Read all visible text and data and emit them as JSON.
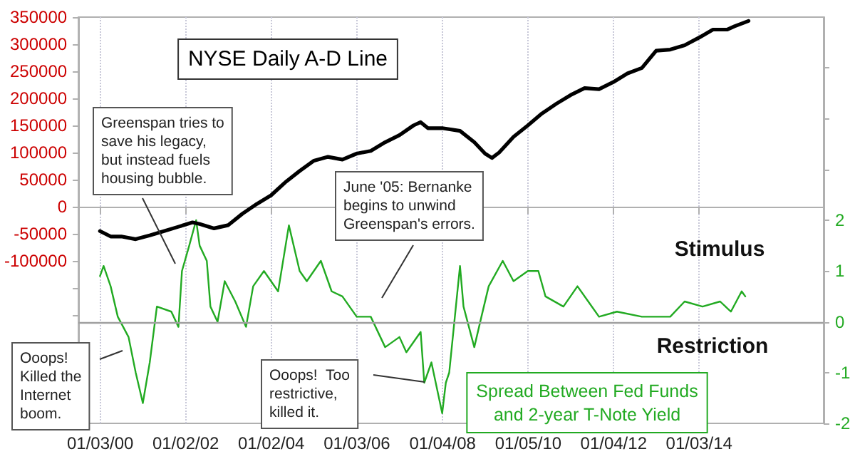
{
  "chart_data": {
    "type": "line",
    "xlim": [
      "1999-07-01",
      "2016-12-01"
    ],
    "xticks": [
      {
        "value": "2000-01-03",
        "label": "01/03/00"
      },
      {
        "value": "2002-01-02",
        "label": "01/02/02"
      },
      {
        "value": "2004-01-02",
        "label": "01/02/04"
      },
      {
        "value": "2006-01-03",
        "label": "01/03/06"
      },
      {
        "value": "2008-01-04",
        "label": "01/04/08"
      },
      {
        "value": "2010-01-05",
        "label": "01/05/10"
      },
      {
        "value": "2012-01-04",
        "label": "01/04/12"
      },
      {
        "value": "2014-01-03",
        "label": "01/03/14"
      }
    ],
    "ylim": [
      -400000,
      350000
    ],
    "yticks": [
      {
        "value": -350000,
        "label": null
      },
      {
        "value": -300000,
        "label": null
      },
      {
        "value": -250000,
        "label": null
      },
      {
        "value": -200000,
        "label": null
      },
      {
        "value": -150000,
        "label": null
      },
      -100000,
      -50000,
      0,
      50000,
      100000,
      150000,
      200000,
      250000,
      300000,
      350000
    ],
    "y2lim": [
      -2,
      6
    ],
    "y2ticks": [
      -2,
      -1,
      0,
      1,
      2,
      {
        "value": 3,
        "label": null
      },
      {
        "value": 4,
        "label": null
      },
      {
        "value": 5,
        "label": null
      }
    ],
    "grid": "x",
    "marker": "none",
    "line_style": "solid",
    "ref_lines": [
      {
        "axis": "y2",
        "value": 0,
        "color": "#a0a0a0"
      }
    ],
    "series": [
      {
        "name": "NYSE Daily A-D Line",
        "color": "#000000",
        "x": [
          "2000-01",
          "2000-04",
          "2000-07",
          "2000-11",
          "2001-03",
          "2001-07",
          "2001-11",
          "2002-03",
          "2002-05",
          "2002-09",
          "2003-01",
          "2003-05",
          "2003-09",
          "2004-01",
          "2004-05",
          "2004-09",
          "2005-01",
          "2005-05",
          "2005-09",
          "2006-01",
          "2006-05",
          "2006-09",
          "2007-01",
          "2007-05",
          "2007-07",
          "2007-09",
          "2008-01",
          "2008-06",
          "2008-10",
          "2009-01",
          "2009-03",
          "2009-05",
          "2009-09",
          "2010-01",
          "2010-05",
          "2010-09",
          "2011-01",
          "2011-05",
          "2011-09",
          "2012-01",
          "2012-05",
          "2012-09",
          "2013-01",
          "2013-05",
          "2013-09",
          "2014-01",
          "2014-05",
          "2014-09",
          "2014-11",
          "2015-03"
        ],
        "values": [
          -45000,
          -55000,
          -55000,
          -60000,
          -53000,
          -45000,
          -37000,
          -29000,
          -32000,
          -40000,
          -34000,
          -13000,
          5000,
          21000,
          45000,
          66000,
          85000,
          92000,
          87000,
          98000,
          103000,
          119000,
          132000,
          150000,
          156000,
          145000,
          145000,
          140000,
          119000,
          98000,
          90000,
          100000,
          129000,
          150000,
          172000,
          190000,
          206000,
          219000,
          217000,
          230000,
          246000,
          256000,
          288000,
          290000,
          298000,
          312000,
          327000,
          327000,
          333000,
          343000
        ]
      },
      {
        "name": "Spread Between Fed Funds and 2-year T-Note Yield",
        "color": "#22aa22",
        "axis": "y2",
        "x": [
          "2000-01",
          "2000-02",
          "2000-04",
          "2000-06",
          "2000-09",
          "2000-11",
          "2001-01",
          "2001-03",
          "2001-05",
          "2001-09",
          "2001-11",
          "2001-12",
          "2002-02",
          "2002-04",
          "2002-05",
          "2002-07",
          "2002-08",
          "2002-10",
          "2002-12",
          "2003-03",
          "2003-06",
          "2003-08",
          "2003-11",
          "2004-03",
          "2004-06",
          "2004-09",
          "2004-11",
          "2005-03",
          "2005-06",
          "2005-09",
          "2006-01",
          "2006-05",
          "2006-09",
          "2007-01",
          "2007-03",
          "2007-07",
          "2007-08",
          "2007-10",
          "2008-01",
          "2008-02",
          "2008-03",
          "2008-06",
          "2008-07",
          "2008-10",
          "2008-12",
          "2009-02",
          "2009-06",
          "2009-09",
          "2010-01",
          "2010-04",
          "2010-06",
          "2010-11",
          "2011-03",
          "2011-06",
          "2011-09",
          "2012-02",
          "2012-09",
          "2013-05",
          "2013-09",
          "2014-02",
          "2014-07",
          "2014-10",
          "2015-01",
          "2015-02"
        ],
        "values": [
          0.9,
          1.1,
          0.7,
          0.1,
          -0.3,
          -1.0,
          -1.6,
          -0.8,
          0.3,
          0.2,
          -0.1,
          1.0,
          1.5,
          2.0,
          1.5,
          1.2,
          0.3,
          0.0,
          0.8,
          0.4,
          -0.1,
          0.7,
          1.0,
          0.6,
          1.9,
          1.0,
          0.8,
          1.2,
          0.6,
          0.5,
          0.1,
          0.1,
          -0.5,
          -0.3,
          -0.6,
          -0.2,
          -1.2,
          -0.8,
          -1.8,
          -1.2,
          -1.0,
          1.1,
          0.3,
          -0.5,
          0.1,
          0.7,
          1.2,
          0.8,
          1.0,
          1.0,
          0.5,
          0.3,
          0.7,
          0.4,
          0.1,
          0.2,
          0.1,
          0.1,
          0.4,
          0.3,
          0.4,
          0.2,
          0.6,
          0.5
        ]
      }
    ],
    "annotations": [
      "Greenspan tries to save his legacy, but instead fuels housing bubble.",
      "June '05: Bernanke begins to unwind Greenspan's errors.",
      "Ooops! Killed the Internet boom.",
      "Ooops!  Too restrictive, killed it.",
      "Stimulus",
      "Restriction"
    ]
  }
}
